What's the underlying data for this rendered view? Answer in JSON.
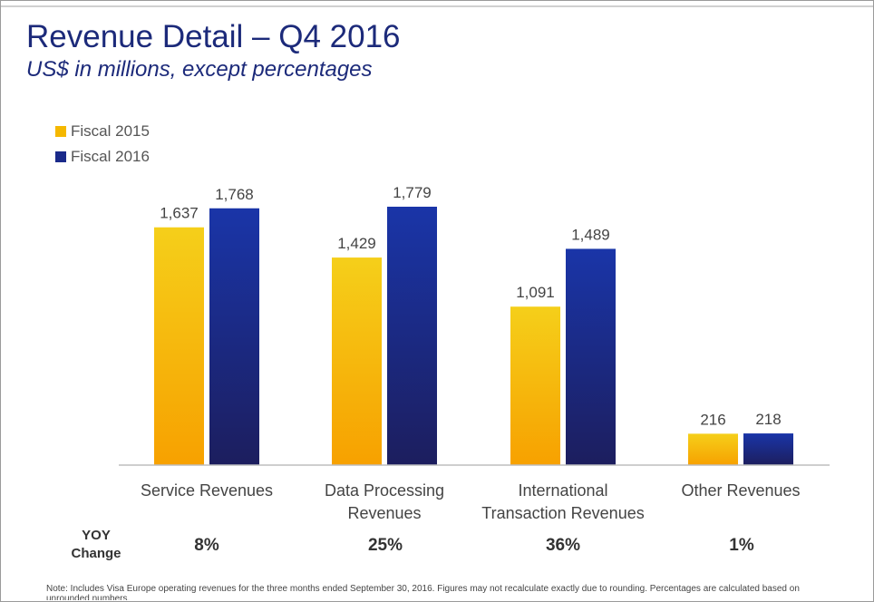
{
  "header": {
    "title": "Revenue Detail – Q4 2016",
    "subtitle": "US$ in millions, except percentages"
  },
  "colors": {
    "fiscal_2015_top": "#f5cf1a",
    "fiscal_2015_bottom": "#f7a100",
    "fiscal_2016_top": "#1a35a8",
    "fiscal_2016_bottom": "#1c1e5e",
    "axis": "#bdbdbd",
    "label_text": "#444444"
  },
  "chart_data": {
    "type": "bar",
    "title": "",
    "xlabel": "",
    "ylabel": "",
    "categories": [
      [
        "Service Revenues"
      ],
      [
        "Data Processing",
        "Revenues"
      ],
      [
        "International",
        "Transaction Revenues"
      ],
      [
        "Other Revenues"
      ]
    ],
    "series": [
      {
        "name": "Fiscal 2015",
        "values": [
          1637,
          1429,
          1091,
          216
        ],
        "labels": [
          "1,637",
          "1,429",
          "1,091",
          "216"
        ]
      },
      {
        "name": "Fiscal 2016",
        "values": [
          1768,
          1779,
          1489,
          218
        ],
        "labels": [
          "1,768",
          "1,779",
          "1,489",
          "218"
        ]
      }
    ],
    "ylim": [
      0,
      2000
    ],
    "grid": false,
    "legend": "top-left"
  },
  "yoy": {
    "label_line1": "YOY",
    "label_line2": "Change",
    "values": [
      "8%",
      "25%",
      "36%",
      "1%"
    ]
  },
  "footnote": "Note: Includes Visa Europe operating revenues for the three months ended September 30, 2016. Figures may not recalculate exactly due to rounding. Percentages are calculated based on unrounded numbers."
}
